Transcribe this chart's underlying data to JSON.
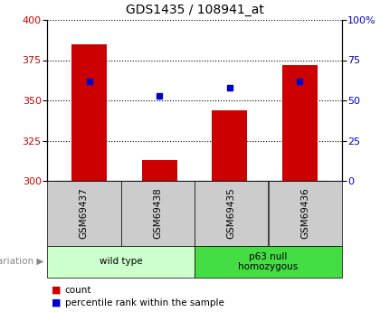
{
  "title": "GDS1435 / 108941_at",
  "samples": [
    "GSM69437",
    "GSM69438",
    "GSM69435",
    "GSM69436"
  ],
  "bar_values": [
    385,
    313,
    344,
    372
  ],
  "percentile_values": [
    362,
    353,
    358,
    362
  ],
  "bar_color": "#cc0000",
  "percentile_color": "#0000cc",
  "ylim_left": [
    300,
    400
  ],
  "ylim_right": [
    0,
    100
  ],
  "yticks_left": [
    300,
    325,
    350,
    375,
    400
  ],
  "yticks_right": [
    0,
    25,
    50,
    75,
    100
  ],
  "groups": [
    {
      "label": "wild type",
      "color": "#ccffcc",
      "n_samples": 2
    },
    {
      "label": "p63 null\nhomozygous",
      "color": "#44dd44",
      "n_samples": 2
    }
  ],
  "legend_items": [
    {
      "label": "count",
      "color": "#cc0000"
    },
    {
      "label": "percentile rank within the sample",
      "color": "#0000cc"
    }
  ],
  "bar_width": 0.5,
  "sample_box_color": "#cccccc",
  "fig_width": 4.2,
  "fig_height": 3.45,
  "dpi": 100
}
